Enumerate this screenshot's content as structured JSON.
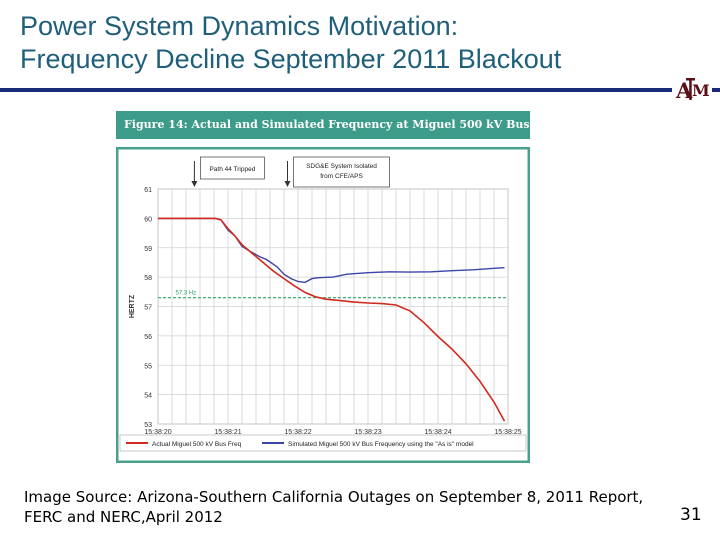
{
  "slide": {
    "title_line1": "Power System Dynamics Motivation:",
    "title_line2": "Frequency Decline September 2011 Blackout",
    "figure_caption": "Figure 14:  Actual and Simulated Frequency at Miguel 500 kV Bus",
    "source_line1": "Image Source: Arizona-Southern California Outages on September 8, 2011 Report,",
    "source_line2": "FERC and NERC,April 2012",
    "page_number": "31",
    "logo_text": "ÃM"
  },
  "colors": {
    "title": "#1f5f7a",
    "rule": "#1b2a7a",
    "figure_header": "#3d9b8a",
    "chart_border": "#4aa08e",
    "actual_line": "#d22a1e",
    "simulated_line": "#3a46a8",
    "threshold_line": "#2fa36b",
    "logo": "#5a0f17"
  },
  "chart_data": {
    "type": "line",
    "ylabel": "HERTZ",
    "ylim": [
      53,
      61
    ],
    "yticks": [
      "61",
      "60",
      "59",
      "58",
      "57",
      "56",
      "55",
      "54",
      "53"
    ],
    "xticks": [
      "15:38:20",
      "15:38:21",
      "15:38:22",
      "15:38:23",
      "15:38:24",
      "15:38:25"
    ],
    "xlim": [
      0,
      5
    ],
    "grid": true,
    "threshold": {
      "value": 57.3,
      "label": "57.3 Hz"
    },
    "annotations": [
      {
        "text_line1": "Path 44 Tripped",
        "text_line2": "",
        "x": 0.52
      },
      {
        "text_line1": "SDG&E System Isolated",
        "text_line2": "from CFE/APS",
        "x": 1.85
      }
    ],
    "legend_position": "bottom",
    "series": [
      {
        "name": "Actual Miguel 500 kV Bus Freq",
        "x": [
          0,
          0.3,
          0.6,
          0.82,
          0.9,
          1.0,
          1.1,
          1.2,
          1.35,
          1.5,
          1.65,
          1.8,
          1.95,
          2.1,
          2.25,
          2.4,
          2.6,
          2.8,
          3.0,
          3.2,
          3.4,
          3.6,
          3.8,
          4.0,
          4.2,
          4.4,
          4.6,
          4.8,
          4.95
        ],
        "values": [
          60.0,
          60.0,
          60.0,
          60.0,
          59.95,
          59.65,
          59.4,
          59.1,
          58.8,
          58.5,
          58.2,
          57.95,
          57.7,
          57.48,
          57.33,
          57.25,
          57.2,
          57.15,
          57.12,
          57.1,
          57.05,
          56.85,
          56.45,
          55.98,
          55.55,
          55.05,
          54.45,
          53.75,
          53.1
        ]
      },
      {
        "name": "Simulated Miguel 500 kV Bus Frequency using the \"As is\" model",
        "x": [
          0,
          0.3,
          0.6,
          0.82,
          0.9,
          1.0,
          1.1,
          1.2,
          1.3,
          1.45,
          1.55,
          1.7,
          1.8,
          1.9,
          2.0,
          2.1,
          2.2,
          2.3,
          2.5,
          2.7,
          3.0,
          3.3,
          3.6,
          3.9,
          4.2,
          4.5,
          4.8,
          4.95
        ],
        "values": [
          60.0,
          60.0,
          60.0,
          60.0,
          59.95,
          59.6,
          59.4,
          59.05,
          58.9,
          58.7,
          58.6,
          58.35,
          58.1,
          57.95,
          57.85,
          57.82,
          57.95,
          57.98,
          58.0,
          58.1,
          58.15,
          58.18,
          58.17,
          58.18,
          58.22,
          58.25,
          58.3,
          58.32
        ]
      }
    ]
  }
}
